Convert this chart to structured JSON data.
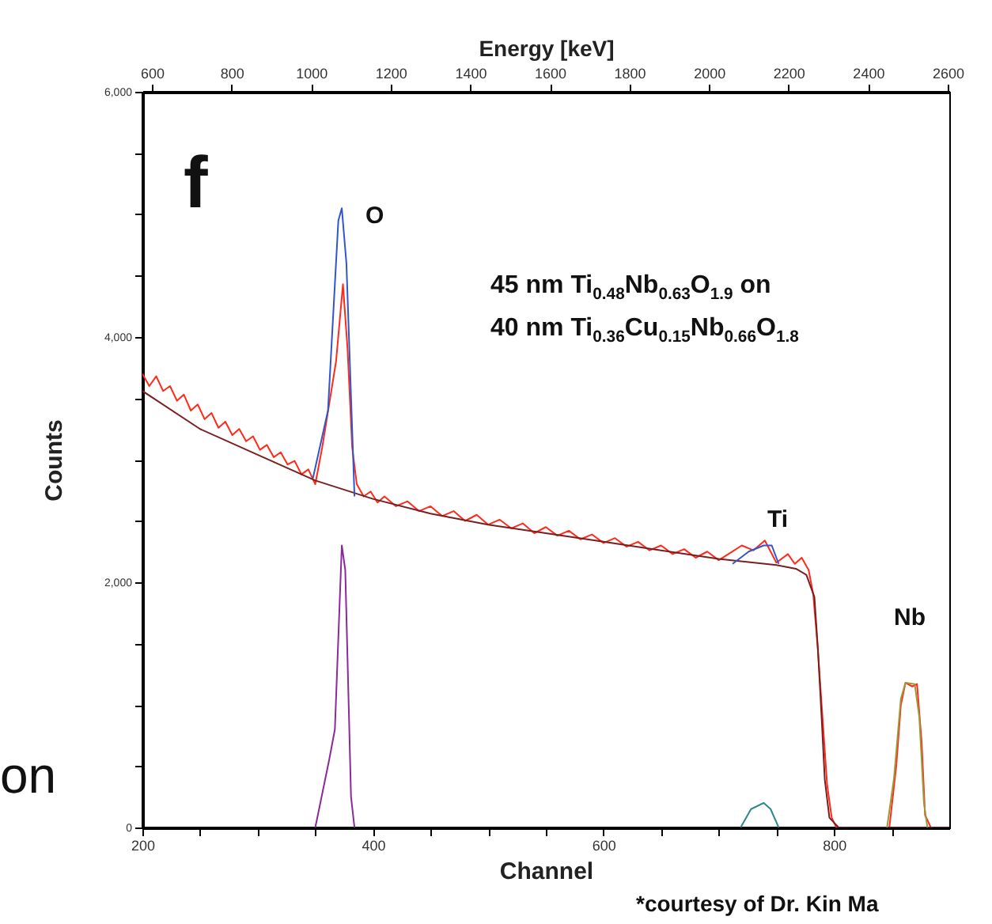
{
  "chart_data": {
    "type": "line",
    "xlabel": "Channel",
    "ylabel": "Counts",
    "x2label": "Energy [keV]",
    "xlim": [
      200,
      900
    ],
    "xticks": [
      200,
      {
        "value": 250,
        "label": null
      },
      {
        "value": 300,
        "label": null
      },
      {
        "value": 350,
        "label": null
      },
      400,
      {
        "value": 450,
        "label": null
      },
      {
        "value": 500,
        "label": null
      },
      {
        "value": 550,
        "label": null
      },
      600,
      {
        "value": 650,
        "label": null
      },
      {
        "value": 700,
        "label": null
      },
      {
        "value": 750,
        "label": null
      },
      800,
      {
        "value": 850,
        "label": null
      }
    ],
    "ylim": [
      0,
      6000
    ],
    "yticks": [
      0,
      {
        "value": 500,
        "label": null
      },
      {
        "value": 1000,
        "label": null
      },
      {
        "value": 1500,
        "label": null
      },
      {
        "value": 2000,
        "label": "2,000"
      },
      {
        "value": 2500,
        "label": null
      },
      {
        "value": 3000,
        "label": null
      },
      {
        "value": 3500,
        "label": null
      },
      {
        "value": 4000,
        "label": "4,000"
      },
      {
        "value": 4500,
        "label": null
      },
      {
        "value": 5000,
        "label": null
      },
      {
        "value": 5500,
        "label": null
      },
      {
        "value": 6000,
        "label": "6,000"
      }
    ],
    "x2lim": [
      576,
      2604
    ],
    "x2ticks": [
      600,
      800,
      1000,
      1200,
      1400,
      1600,
      1800,
      2000,
      2200,
      2400,
      2600
    ],
    "marker": "none",
    "line_style": "solid",
    "series": [
      {
        "color": "#ff2a1a",
        "x": [
          200,
          206,
          212,
          218,
          224,
          230,
          236,
          242,
          248,
          254,
          260,
          266,
          272,
          278,
          284,
          290,
          296,
          302,
          308,
          314,
          320,
          326,
          332,
          338,
          344,
          350,
          356,
          362,
          368,
          374,
          378,
          382,
          386,
          392,
          398,
          404,
          410,
          420,
          430,
          440,
          450,
          460,
          470,
          480,
          490,
          500,
          510,
          520,
          530,
          540,
          550,
          560,
          570,
          580,
          590,
          600,
          610,
          620,
          630,
          640,
          650,
          660,
          670,
          680,
          690,
          700,
          710,
          720,
          730,
          740,
          750,
          760,
          766,
          772,
          778,
          782,
          786,
          790,
          794,
          798,
          802,
          810,
          820,
          830,
          840,
          848,
          854,
          858,
          862,
          868,
          872,
          876,
          879,
          884,
          892,
          900
        ],
        "values": [
          3700,
          3600,
          3680,
          3560,
          3600,
          3480,
          3530,
          3400,
          3450,
          3330,
          3380,
          3260,
          3310,
          3200,
          3250,
          3150,
          3190,
          3080,
          3120,
          3020,
          3060,
          2960,
          2990,
          2880,
          2920,
          2800,
          3100,
          3450,
          3800,
          4430,
          3900,
          3100,
          2800,
          2700,
          2740,
          2650,
          2700,
          2620,
          2660,
          2580,
          2620,
          2540,
          2580,
          2500,
          2550,
          2470,
          2510,
          2440,
          2480,
          2400,
          2450,
          2380,
          2420,
          2350,
          2390,
          2320,
          2360,
          2290,
          2330,
          2260,
          2300,
          2230,
          2270,
          2200,
          2250,
          2180,
          2240,
          2300,
          2260,
          2340,
          2160,
          2230,
          2150,
          2200,
          2100,
          1900,
          1450,
          900,
          350,
          80,
          0,
          0,
          0,
          0,
          0,
          0,
          500,
          1000,
          1180,
          1150,
          1170,
          700,
          100,
          0,
          0,
          0
        ]
      },
      {
        "color": "#7a1f1f",
        "x": [
          200,
          250,
          300,
          350,
          400,
          450,
          500,
          550,
          600,
          650,
          700,
          750,
          767,
          776,
          783,
          786,
          789,
          792,
          796,
          804,
          900
        ],
        "values": [
          3560,
          3250,
          3040,
          2830,
          2680,
          2560,
          2470,
          2400,
          2330,
          2260,
          2190,
          2140,
          2110,
          2060,
          1880,
          1460,
          940,
          390,
          80,
          0,
          0
        ]
      },
      {
        "color": "#3355cc",
        "x": [
          348,
          361,
          370,
          373,
          377,
          384,
          550,
          712,
          726,
          739,
          746,
          752
        ],
        "values": [
          2850,
          3400,
          4950,
          5050,
          4600,
          2700,
          null,
          2150,
          2250,
          2300,
          2300,
          2150
        ]
      },
      {
        "color": "#8b2a9a",
        "x": [
          350,
          362,
          367,
          373,
          376,
          381,
          384
        ],
        "values": [
          0,
          550,
          800,
          2300,
          2100,
          250,
          0
        ]
      },
      {
        "color": "#2a8a8a",
        "x": [
          719,
          728,
          739,
          745,
          752
        ],
        "values": [
          0,
          150,
          200,
          150,
          0
        ]
      },
      {
        "color": "#9a9a3a",
        "x": [
          846,
          852,
          858,
          862,
          870,
          874,
          878,
          881
        ],
        "values": [
          0,
          400,
          1050,
          1180,
          1170,
          900,
          200,
          0
        ]
      }
    ],
    "annotations": [
      "O",
      "Ti",
      "Nb",
      "f",
      "45 nm Ti$_{0.48}$Nb$_{0.63}$O$_{1.9}$ on",
      "40 nm Ti$_{0.36}$Cu$_{0.15}$Nb$_{0.66}$O$_{1.8}$",
      "on",
      "*courtesy of Dr. Kin Ma"
    ]
  }
}
